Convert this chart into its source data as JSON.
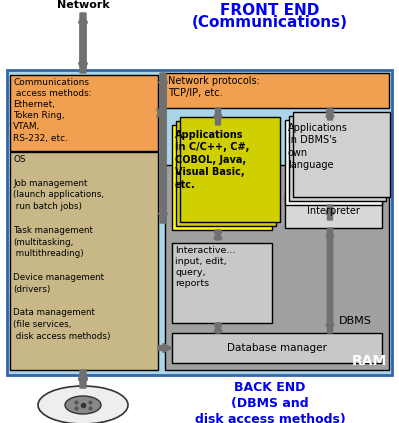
{
  "title_line1": "FRONT END",
  "title_line2": "(Communications)",
  "back_end_title": "BACK END\n(DBMS and\ndisk access methods)",
  "ram_label": "RAM",
  "network_label": "Network",
  "bg_color": "#aad4e8",
  "comm_box_color": "#f0a050",
  "os_box_color": "#c8b888",
  "net_proto_box_color": "#f0a050",
  "dbms_box_color": "#a0a0a0",
  "db_manager_box_color": "#c8c8c8",
  "interactive_box_color": "#c8c8c8",
  "interpreter_box_color": "#d8d8d8",
  "app_yellow_box_color": "#ffff00",
  "app_yellow_shadow": "#d0d000",
  "app_white_box_color": "#f8f8f8",
  "app_white_shadow": "#d0d0d0",
  "comm_text": "Communications\n access methods:\nEthernet,\nToken Ring,\nVTAM,\nRS-232, etc.",
  "os_text": "OS\n\nJob management\n(launch applications,\n run batch jobs)\n\nTask management\n(multitasking,\n multithreading)\n\nDevice management\n(drivers)\n\nData management\n(file services,\n disk access methods)",
  "net_proto_text": "Network protocols:\nTCP/IP, etc.",
  "app_yellow_text": "Applications\nin C/C++, C#,\nCOBOL, Java,\nVisual Basic,\netc.",
  "app_white_text": "Applications\nin DBMS's\nown\nlanguage",
  "interactive_text": "Interactive...\ninput, edit,\nquery,\nreports",
  "interpreter_text": "Interpreter",
  "dbms_label": "DBMS",
  "db_manager_text": "Database manager",
  "title_color": "#0000ee",
  "back_end_color": "#0000ee",
  "ram_color": "#ffffff",
  "arrow_color": "#707070",
  "edge_color": "#000000"
}
